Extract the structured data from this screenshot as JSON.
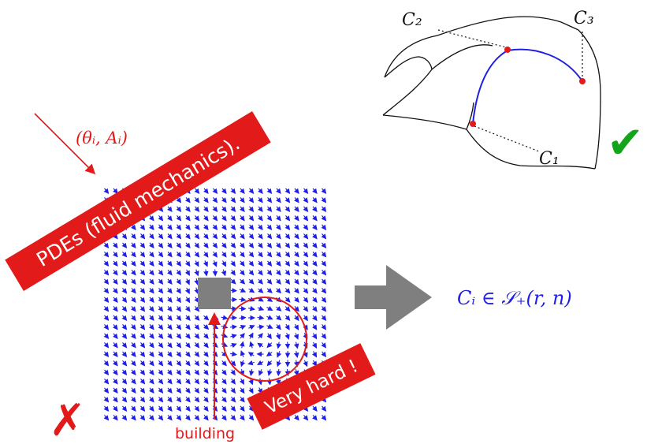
{
  "labels": {
    "incident": "(θᵢ, Aᵢ)",
    "pdes_banner": "PDEs (fluid mechanics).",
    "very_hard_banner": "Very hard !",
    "building": "building",
    "result": "Cᵢ ∈ 𝒮₊(r, n)",
    "c1": "C₁",
    "c2": "C₂",
    "c3": "C₃"
  },
  "marks": {
    "check": "✔",
    "cross": "✗"
  },
  "colors": {
    "red": "#e21a1a",
    "blue": "#1f1fe6",
    "gray": "#7f7f7f",
    "green": "#12a41a",
    "black": "#111111"
  },
  "icons": [
    "arrow-icon",
    "check-icon",
    "cross-icon"
  ]
}
